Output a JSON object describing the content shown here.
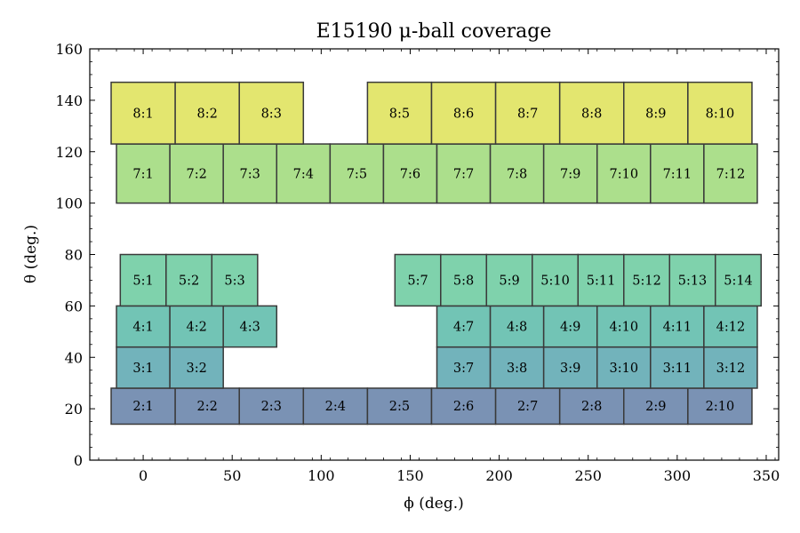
{
  "chart_data": {
    "type": "heatmap",
    "title": "E15190 μ-ball coverage",
    "xlabel": "ϕ (deg.)",
    "ylabel": "θ (deg.)",
    "xlim": [
      -30,
      357
    ],
    "ylim": [
      0,
      160
    ],
    "xticks": [
      0,
      50,
      100,
      150,
      200,
      250,
      300,
      350
    ],
    "yticks": [
      0,
      20,
      40,
      60,
      80,
      100,
      120,
      140,
      160
    ],
    "grid": false,
    "colormap": "viridis (by ring)",
    "rings": [
      {
        "ring": 2,
        "theta": [
          14,
          28
        ],
        "color": "#7a92b4",
        "cells": [
          {
            "label": "2:1",
            "phi": [
              -18,
              18
            ]
          },
          {
            "label": "2:2",
            "phi": [
              18,
              54
            ]
          },
          {
            "label": "2:3",
            "phi": [
              54,
              90
            ]
          },
          {
            "label": "2:4",
            "phi": [
              90,
              126
            ]
          },
          {
            "label": "2:5",
            "phi": [
              126,
              162
            ]
          },
          {
            "label": "2:6",
            "phi": [
              162,
              198
            ]
          },
          {
            "label": "2:7",
            "phi": [
              198,
              234
            ]
          },
          {
            "label": "2:8",
            "phi": [
              234,
              270
            ]
          },
          {
            "label": "2:9",
            "phi": [
              270,
              306
            ]
          },
          {
            "label": "2:10",
            "phi": [
              306,
              342
            ]
          }
        ]
      },
      {
        "ring": 3,
        "theta": [
          28,
          44
        ],
        "color": "#72b3bb",
        "cells": [
          {
            "label": "3:1",
            "phi": [
              -15,
              15
            ]
          },
          {
            "label": "3:2",
            "phi": [
              15,
              45
            ]
          },
          {
            "label": "3:7",
            "phi": [
              165,
              195
            ]
          },
          {
            "label": "3:8",
            "phi": [
              195,
              225
            ]
          },
          {
            "label": "3:9",
            "phi": [
              225,
              255
            ]
          },
          {
            "label": "3:10",
            "phi": [
              255,
              285
            ]
          },
          {
            "label": "3:11",
            "phi": [
              285,
              315
            ]
          },
          {
            "label": "3:12",
            "phi": [
              315,
              345
            ]
          }
        ]
      },
      {
        "ring": 4,
        "theta": [
          44,
          60
        ],
        "color": "#72c4b5",
        "cells": [
          {
            "label": "4:1",
            "phi": [
              -15,
              15
            ]
          },
          {
            "label": "4:2",
            "phi": [
              15,
              45
            ]
          },
          {
            "label": "4:3",
            "phi": [
              45,
              75
            ]
          },
          {
            "label": "4:7",
            "phi": [
              165,
              195
            ]
          },
          {
            "label": "4:8",
            "phi": [
              195,
              225
            ]
          },
          {
            "label": "4:9",
            "phi": [
              225,
              255
            ]
          },
          {
            "label": "4:10",
            "phi": [
              255,
              285
            ]
          },
          {
            "label": "4:11",
            "phi": [
              285,
              315
            ]
          },
          {
            "label": "4:12",
            "phi": [
              315,
              345
            ]
          }
        ]
      },
      {
        "ring": 5,
        "theta": [
          60,
          80
        ],
        "color": "#7fd2ac",
        "cells": [
          {
            "label": "5:1",
            "phi": [
              -12.86,
              12.86
            ]
          },
          {
            "label": "5:2",
            "phi": [
              12.86,
              38.57
            ]
          },
          {
            "label": "5:3",
            "phi": [
              38.57,
              64.29
            ]
          },
          {
            "label": "5:7",
            "phi": [
              141.43,
              167.14
            ]
          },
          {
            "label": "5:8",
            "phi": [
              167.14,
              192.86
            ]
          },
          {
            "label": "5:9",
            "phi": [
              192.86,
              218.57
            ]
          },
          {
            "label": "5:10",
            "phi": [
              218.57,
              244.29
            ]
          },
          {
            "label": "5:11",
            "phi": [
              244.29,
              270
            ]
          },
          {
            "label": "5:12",
            "phi": [
              270,
              295.71
            ]
          },
          {
            "label": "5:13",
            "phi": [
              295.71,
              321.43
            ]
          },
          {
            "label": "5:14",
            "phi": [
              321.43,
              347.14
            ]
          }
        ]
      },
      {
        "ring": 7,
        "theta": [
          100,
          123
        ],
        "color": "#acdf8c",
        "cells": [
          {
            "label": "7:1",
            "phi": [
              -15,
              15
            ]
          },
          {
            "label": "7:2",
            "phi": [
              15,
              45
            ]
          },
          {
            "label": "7:3",
            "phi": [
              45,
              75
            ]
          },
          {
            "label": "7:4",
            "phi": [
              75,
              105
            ]
          },
          {
            "label": "7:5",
            "phi": [
              105,
              135
            ]
          },
          {
            "label": "7:6",
            "phi": [
              135,
              165
            ]
          },
          {
            "label": "7:7",
            "phi": [
              165,
              195
            ]
          },
          {
            "label": "7:8",
            "phi": [
              195,
              225
            ]
          },
          {
            "label": "7:9",
            "phi": [
              225,
              255
            ]
          },
          {
            "label": "7:10",
            "phi": [
              255,
              285
            ]
          },
          {
            "label": "7:11",
            "phi": [
              285,
              315
            ]
          },
          {
            "label": "7:12",
            "phi": [
              315,
              345
            ]
          }
        ]
      },
      {
        "ring": 8,
        "theta": [
          123,
          147
        ],
        "color": "#e3e66f",
        "cells": [
          {
            "label": "8:1",
            "phi": [
              -18,
              18
            ]
          },
          {
            "label": "8:2",
            "phi": [
              18,
              54
            ]
          },
          {
            "label": "8:3",
            "phi": [
              54,
              90
            ]
          },
          {
            "label": "8:5",
            "phi": [
              126,
              162
            ]
          },
          {
            "label": "8:6",
            "phi": [
              162,
              198
            ]
          },
          {
            "label": "8:7",
            "phi": [
              198,
              234
            ]
          },
          {
            "label": "8:8",
            "phi": [
              234,
              270
            ]
          },
          {
            "label": "8:9",
            "phi": [
              270,
              306
            ]
          },
          {
            "label": "8:10",
            "phi": [
              306,
              342
            ]
          }
        ]
      }
    ]
  }
}
